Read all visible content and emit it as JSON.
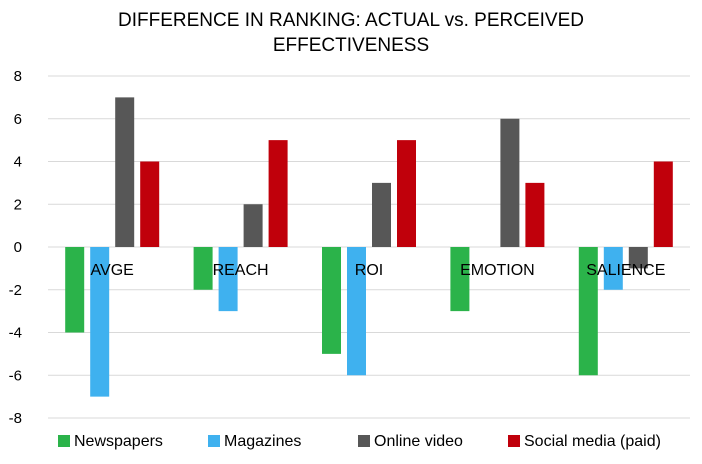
{
  "chart_data": {
    "type": "bar",
    "title_line1": "DIFFERENCE IN RANKING: ACTUAL vs. PERCEIVED",
    "title_line2": "EFFECTIVENESS",
    "categories": [
      "AVGE",
      "REACH",
      "ROI",
      "EMOTION",
      "SALIENCE"
    ],
    "series": [
      {
        "name": "Newspapers",
        "color": "#2bb34a",
        "values": [
          -4,
          -2,
          -5,
          -3,
          -6
        ]
      },
      {
        "name": "Magazines",
        "color": "#3fb1ef",
        "values": [
          -7,
          -3,
          -6,
          0,
          -2
        ]
      },
      {
        "name": "Online video",
        "color": "#575757",
        "values": [
          7,
          2,
          3,
          6,
          -1
        ]
      },
      {
        "name": "Social media (paid)",
        "color": "#c0000b",
        "values": [
          4,
          5,
          5,
          3,
          4
        ]
      }
    ],
    "ylim": [
      -8,
      8
    ],
    "yticks": [
      8,
      6,
      4,
      2,
      0,
      -2,
      -4,
      -6,
      -8
    ],
    "grid": true,
    "legend_position": "bottom",
    "xlabel": "",
    "ylabel": ""
  }
}
